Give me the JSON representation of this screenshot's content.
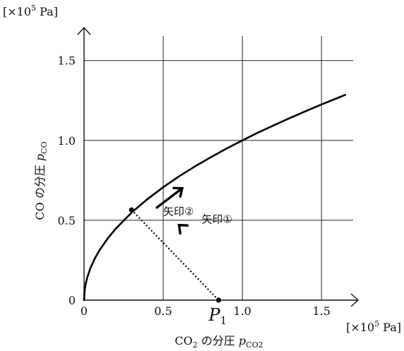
{
  "chart_data": {
    "type": "line",
    "x_unit": "[×10⁵ Pa]",
    "y_unit": "[×10⁵ Pa]",
    "xlabel": {
      "base": "CO",
      "base_sub": "2",
      "mid": " の分圧 ",
      "var": "p",
      "var_sub": "CO2"
    },
    "ylabel": {
      "base": "CO の分圧 ",
      "var": "p",
      "var_sub": "CO"
    },
    "xlim": [
      0,
      1.7
    ],
    "ylim": [
      0,
      1.68
    ],
    "x_ticks": [
      {
        "v": 0,
        "label": "0"
      },
      {
        "v": 0.5,
        "label": "0.5"
      },
      {
        "v": 1.0,
        "label": "1.0"
      },
      {
        "v": 1.5,
        "label": "1.5"
      }
    ],
    "y_ticks": [
      {
        "v": 0,
        "label": "0"
      },
      {
        "v": 0.5,
        "label": "0.5"
      },
      {
        "v": 1.0,
        "label": "1.0"
      },
      {
        "v": 1.5,
        "label": "1.5"
      }
    ],
    "grid": true,
    "series": [
      {
        "x": [
          0,
          0.005,
          0.01,
          0.02,
          0.04,
          0.07,
          0.1,
          0.15,
          0.2,
          0.3,
          0.4,
          0.5,
          0.6,
          0.7,
          0.8,
          0.9,
          1.0,
          1.1,
          1.2,
          1.3,
          1.4,
          1.5,
          1.6,
          1.65
        ],
        "y": [
          0,
          0.071,
          0.1,
          0.141,
          0.2,
          0.265,
          0.316,
          0.387,
          0.447,
          0.548,
          0.632,
          0.707,
          0.775,
          0.837,
          0.894,
          0.949,
          1.0,
          1.049,
          1.095,
          1.14,
          1.183,
          1.225,
          1.265,
          1.285
        ]
      }
    ],
    "points": [
      {
        "label": "",
        "x": 0.3,
        "y": 0.565
      },
      {
        "label": "P",
        "label_sub": "1",
        "x": 0.85,
        "y": 0
      }
    ],
    "annotations": [
      {
        "text": "矢印①",
        "from": [
          0.7,
          0.38
        ],
        "to": [
          0.6,
          0.47
        ]
      },
      {
        "text": "矢印②",
        "from": [
          0.46,
          0.58
        ],
        "to": [
          0.62,
          0.7
        ]
      }
    ]
  }
}
